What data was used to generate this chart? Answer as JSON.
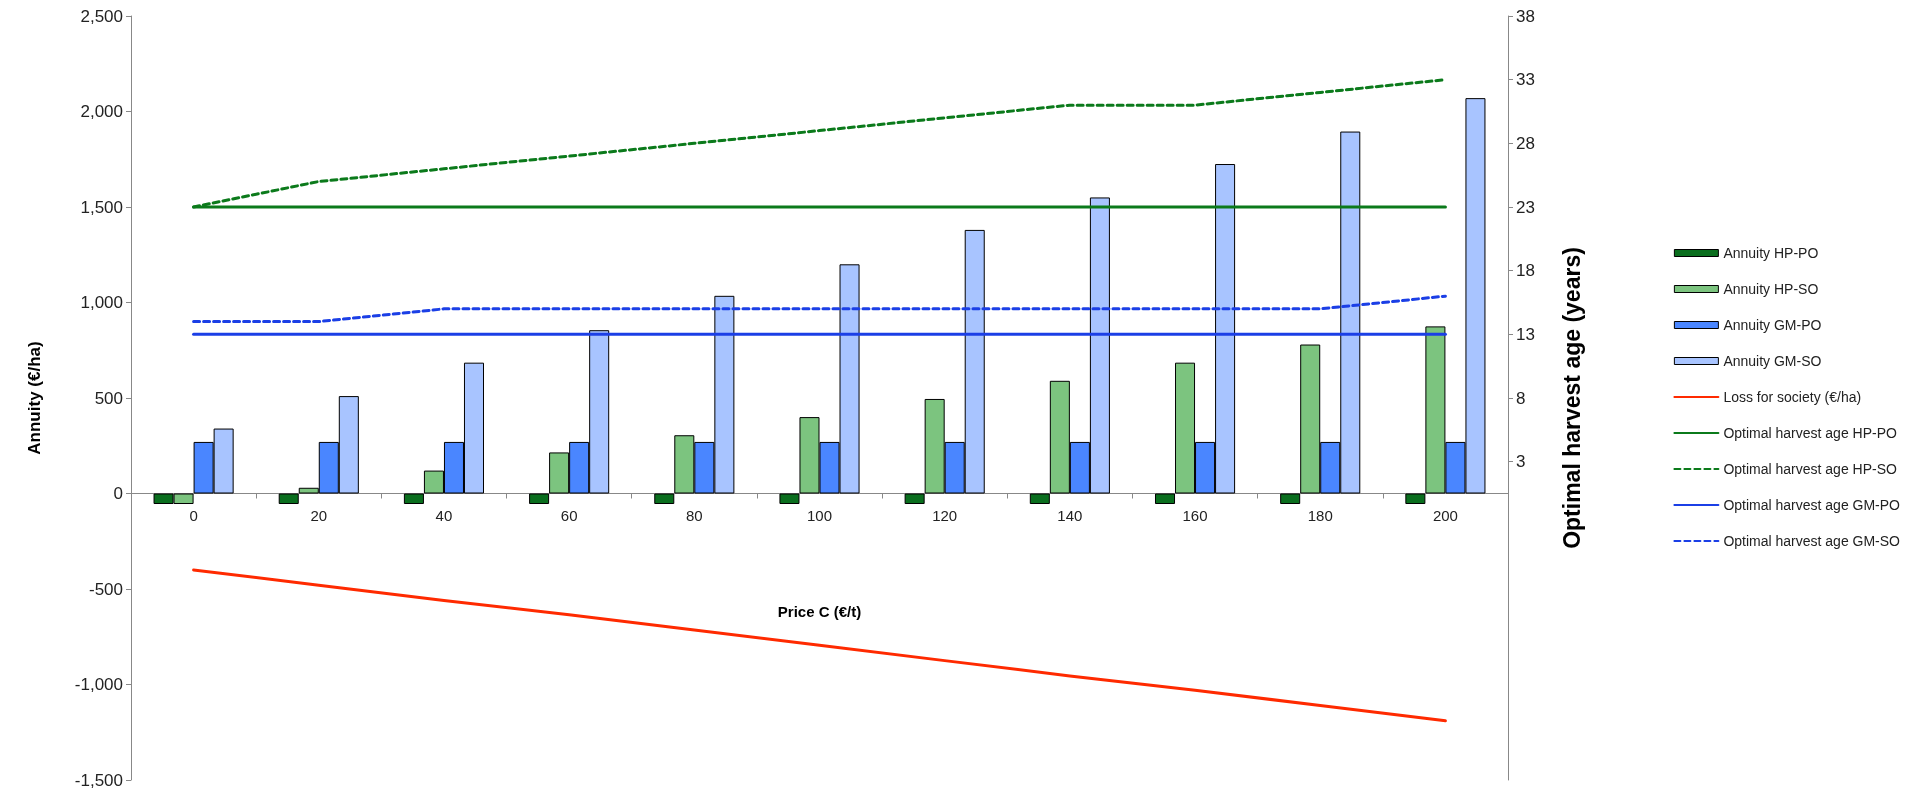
{
  "chart_data": {
    "type": "bar",
    "xlabel": "Price C (€/t)",
    "ylabel": "Annuity (€/ha)",
    "y2label": "Optimal harvest age (years)",
    "categories": [
      "0",
      "20",
      "40",
      "60",
      "80",
      "100",
      "120",
      "140",
      "160",
      "180",
      "200"
    ],
    "series": [
      {
        "name": "Annuity HP-PO",
        "color": "#0a6e1e",
        "values": [
          -55,
          -55,
          -55,
          -55,
          -55,
          -55,
          -55,
          -55,
          -55,
          -55,
          -55
        ]
      },
      {
        "name": "Annuity HP-SO",
        "color": "#7cc47f",
        "values": [
          -55,
          30,
          120,
          215,
          305,
          400,
          495,
          590,
          685,
          780,
          875
        ]
      },
      {
        "name": "Annuity GM-PO",
        "color": "#4a86ff",
        "values": [
          270,
          270,
          270,
          270,
          270,
          270,
          270,
          270,
          270,
          270,
          270
        ]
      },
      {
        "name": "Annuity GM-SO",
        "color": "#a8c4ff",
        "values": [
          340,
          510,
          685,
          855,
          1035,
          1200,
          1380,
          1550,
          1725,
          1895,
          2070
        ]
      },
      {
        "name": "Loss for society (€/ha)",
        "type": "line",
        "color": "#ff2a00",
        "line_style": "solid",
        "values": [
          -400,
          -480,
          -560,
          -635,
          -715,
          -795,
          -875,
          -955,
          -1030,
          -1110,
          -1190
        ]
      },
      {
        "name": "Optimal harvest age HP-PO",
        "type": "line",
        "axis": "y2",
        "color": "#0b7a1b",
        "line_style": "solid",
        "values": [
          23,
          23,
          23,
          23,
          23,
          23,
          23,
          23,
          23,
          23,
          23
        ]
      },
      {
        "name": "Optimal harvest age HP-SO",
        "type": "line",
        "axis": "y2",
        "color": "#0b7a1b",
        "line_style": "dashed",
        "values": [
          23,
          25,
          26,
          27,
          28,
          29,
          30,
          31,
          31,
          32,
          33
        ]
      },
      {
        "name": "Optimal harvest age GM-PO",
        "type": "line",
        "axis": "y2",
        "color": "#1b3fe6",
        "line_style": "solid",
        "values": [
          13,
          13,
          13,
          13,
          13,
          13,
          13,
          13,
          13,
          13,
          13
        ]
      },
      {
        "name": "Optimal harvest age GM-SO",
        "type": "line",
        "axis": "y2",
        "color": "#1b3fe6",
        "line_style": "dashed",
        "values": [
          14,
          14,
          15,
          15,
          15,
          15,
          15,
          15,
          15,
          15,
          16
        ]
      }
    ],
    "ylim": [
      -1500,
      2500
    ],
    "yticks": [
      {
        "value": -1500,
        "label": "-1,500"
      },
      {
        "value": -1000,
        "label": "-1,000"
      },
      -500,
      0,
      500,
      {
        "value": 1000,
        "label": "1,000"
      },
      {
        "value": 1500,
        "label": "1,500"
      },
      {
        "value": 2000,
        "label": "2,000"
      },
      {
        "value": 2500,
        "label": "2,500"
      }
    ],
    "y2lim": [
      -22,
      38
    ],
    "y2ticks": [
      3,
      8,
      13,
      18,
      23,
      28,
      33,
      38
    ],
    "grid": false,
    "legend": "right",
    "marker": "none"
  }
}
